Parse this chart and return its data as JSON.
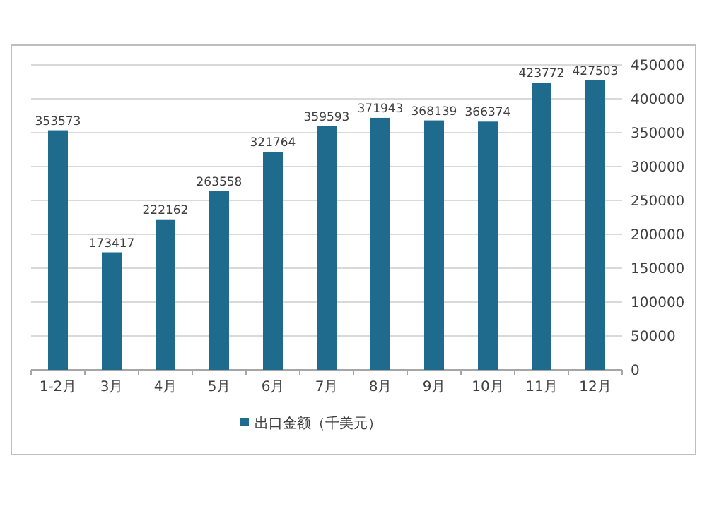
{
  "chart_data": {
    "type": "bar",
    "categories": [
      "1-2月",
      "3月",
      "4月",
      "5月",
      "6月",
      "7月",
      "8月",
      "9月",
      "10月",
      "11月",
      "12月"
    ],
    "series": [
      {
        "name": "出口金额（千美元）",
        "color": "#1f6b8e",
        "values": [
          353573,
          173417,
          222162,
          263558,
          321764,
          359593,
          371943,
          368139,
          366374,
          423772,
          427503
        ]
      }
    ],
    "ylim": [
      0,
      450000
    ],
    "yticks": [
      0,
      50000,
      100000,
      150000,
      200000,
      250000,
      300000,
      350000,
      400000,
      450000
    ],
    "grid": "y",
    "data_labels": true,
    "legend": "bottom"
  }
}
